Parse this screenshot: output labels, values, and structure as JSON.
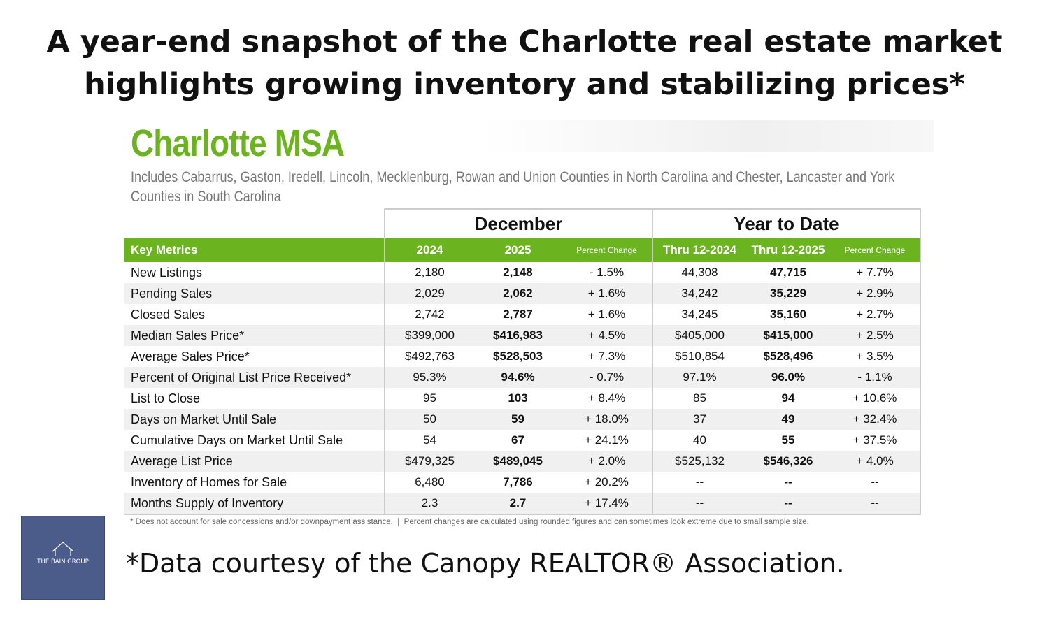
{
  "header": {
    "title_lines": [
      "A year-end snapshot of the Charlotte real estate market",
      "highlights growing inventory and stabilizing prices*"
    ]
  },
  "report": {
    "title": "Charlotte MSA",
    "subtitle": "Includes Cabarrus, Gaston, Iredell, Lincoln, Mecklenburg, Rowan and Union Counties in North Carolina and Chester, Lancaster and York Counties in South Carolina"
  },
  "table": {
    "group_headers": [
      "December",
      "Year to Date"
    ],
    "columns": [
      "Key Metrics",
      "2024",
      "2025",
      "Percent Change",
      "Thru 12-2024",
      "Thru 12-2025",
      "Percent Change"
    ],
    "rows": [
      [
        "New Listings",
        "2,180",
        "2,148",
        "- 1.5%",
        "44,308",
        "47,715",
        "+ 7.7%"
      ],
      [
        "Pending Sales",
        "2,029",
        "2,062",
        "+ 1.6%",
        "34,242",
        "35,229",
        "+ 2.9%"
      ],
      [
        "Closed Sales",
        "2,742",
        "2,787",
        "+ 1.6%",
        "34,245",
        "35,160",
        "+ 2.7%"
      ],
      [
        "Median Sales Price*",
        "$399,000",
        "$416,983",
        "+ 4.5%",
        "$405,000",
        "$415,000",
        "+ 2.5%"
      ],
      [
        "Average Sales Price*",
        "$492,763",
        "$528,503",
        "+ 7.3%",
        "$510,854",
        "$528,496",
        "+ 3.5%"
      ],
      [
        "Percent of Original List Price Received*",
        "95.3%",
        "94.6%",
        "- 0.7%",
        "97.1%",
        "96.0%",
        "- 1.1%"
      ],
      [
        "List to Close",
        "95",
        "103",
        "+ 8.4%",
        "85",
        "94",
        "+ 10.6%"
      ],
      [
        "Days on Market Until Sale",
        "50",
        "59",
        "+ 18.0%",
        "37",
        "49",
        "+ 32.4%"
      ],
      [
        "Cumulative Days on Market Until Sale",
        "54",
        "67",
        "+ 24.1%",
        "40",
        "55",
        "+ 37.5%"
      ],
      [
        "Average List Price",
        "$479,325",
        "$489,045",
        "+ 2.0%",
        "$525,132",
        "$546,326",
        "+ 4.0%"
      ],
      [
        "Inventory of Homes for Sale",
        "6,480",
        "7,786",
        "+ 20.2%",
        "--",
        "--",
        "--"
      ],
      [
        "Months Supply of Inventory",
        "2.3",
        "2.7",
        "+ 17.4%",
        "--",
        "--",
        "--"
      ]
    ],
    "footnote": "* Does not account for sale concessions and/or downpayment assistance.  |  Percent changes are calculated using rounded figures and can sometimes look extreme due to small sample size."
  },
  "footer": {
    "courtesy": "*Data courtesy of the Canopy REALTOR® Association.",
    "logo": "THE BAIN GROUP"
  }
}
